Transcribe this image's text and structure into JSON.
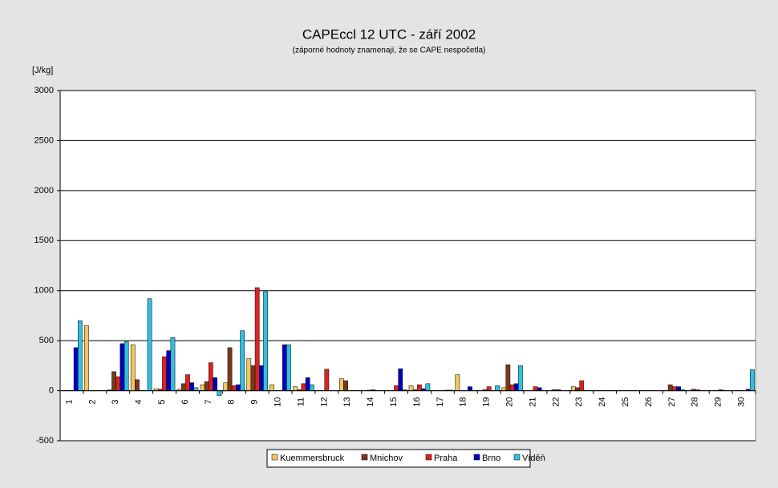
{
  "chart_data": {
    "type": "bar",
    "title": "CAPEccl 12 UTC - září 2002",
    "subtitle": "(záporné hodnoty znamenají, že se CAPE nespočetla)",
    "y_label": "[J/kg]",
    "categories": [
      "1",
      "2",
      "3",
      "4",
      "5",
      "6",
      "7",
      "8",
      "9",
      "10",
      "11",
      "12",
      "13",
      "14",
      "15",
      "16",
      "17",
      "18",
      "19",
      "20",
      "21",
      "22",
      "23",
      "24",
      "25",
      "26",
      "27",
      "28",
      "29",
      "30"
    ],
    "series": [
      {
        "name": "Kuemmersbruck",
        "color": "#f0c860",
        "values": [
          0,
          650,
          10,
          460,
          20,
          15,
          60,
          80,
          320,
          60,
          40,
          0,
          120,
          0,
          0,
          50,
          0,
          160,
          0,
          30,
          0,
          0,
          40,
          0,
          0,
          0,
          0,
          0,
          0,
          0
        ]
      },
      {
        "name": "Mnichov",
        "color": "#7a3a1a",
        "values": [
          0,
          0,
          190,
          110,
          15,
          70,
          90,
          430,
          250,
          0,
          10,
          0,
          100,
          5,
          0,
          10,
          0,
          0,
          10,
          260,
          0,
          10,
          30,
          0,
          0,
          0,
          60,
          15,
          0,
          0
        ]
      },
      {
        "name": "Praha",
        "color": "#e02020",
        "values": [
          0,
          0,
          140,
          0,
          340,
          160,
          280,
          50,
          1030,
          0,
          70,
          215,
          0,
          10,
          50,
          60,
          0,
          0,
          40,
          60,
          40,
          10,
          100,
          0,
          0,
          0,
          40,
          10,
          10,
          0
        ]
      },
      {
        "name": "Brno",
        "color": "#0000c0",
        "values": [
          430,
          0,
          470,
          0,
          400,
          80,
          130,
          60,
          250,
          460,
          130,
          0,
          0,
          0,
          220,
          20,
          5,
          40,
          0,
          70,
          30,
          0,
          0,
          0,
          0,
          0,
          40,
          0,
          0,
          15
        ]
      },
      {
        "name": "Víděň",
        "color": "#30c0e0",
        "values": [
          700,
          0,
          490,
          920,
          530,
          30,
          -50,
          600,
          990,
          460,
          60,
          0,
          0,
          0,
          10,
          70,
          5,
          0,
          50,
          250,
          0,
          0,
          0,
          0,
          0,
          0,
          10,
          0,
          0,
          210
        ]
      }
    ],
    "ylim": [
      -500,
      3000
    ],
    "yticks": [
      -500,
      0,
      500,
      1000,
      1500,
      2000,
      2500,
      3000
    ],
    "grid": true
  }
}
